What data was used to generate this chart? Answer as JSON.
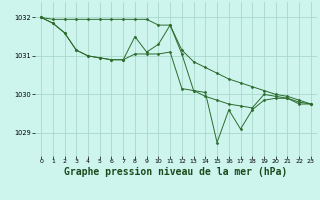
{
  "background_color": "#cdf5ee",
  "grid_color": "#a8d8cc",
  "line_color": "#2d6b2d",
  "marker_color": "#2d6b2d",
  "xlabel": "Graphe pression niveau de la mer (hPa)",
  "xlabel_fontsize": 7.0,
  "ylim": [
    1028.4,
    1032.4
  ],
  "yticks": [
    1029,
    1030,
    1031,
    1032
  ],
  "xlim": [
    -0.5,
    23.5
  ],
  "xticks": [
    0,
    1,
    2,
    3,
    4,
    5,
    6,
    7,
    8,
    9,
    10,
    11,
    12,
    13,
    14,
    15,
    16,
    17,
    18,
    19,
    20,
    21,
    22,
    23
  ],
  "series": [
    [
      1032.0,
      1031.95,
      1031.95,
      1031.95,
      1031.95,
      1031.95,
      1031.95,
      1031.95,
      1031.95,
      1031.95,
      1031.8,
      1031.8,
      1031.15,
      1030.85,
      1030.7,
      1030.55,
      1030.4,
      1030.3,
      1030.2,
      1030.1,
      1030.0,
      1029.95,
      1029.85,
      1029.75
    ],
    [
      1032.0,
      1031.85,
      1031.6,
      1031.15,
      1031.0,
      1030.95,
      1030.9,
      1030.9,
      1031.5,
      1031.1,
      1031.3,
      1031.8,
      1031.05,
      1030.1,
      1029.95,
      1029.85,
      1029.75,
      1029.7,
      1029.65,
      1030.0,
      1029.95,
      1029.9,
      1029.8,
      1029.75
    ],
    [
      1032.0,
      1031.85,
      1031.6,
      1031.15,
      1031.0,
      1030.95,
      1030.9,
      1030.9,
      1031.05,
      1031.05,
      1031.05,
      1031.1,
      1030.15,
      1030.1,
      1030.05,
      1028.75,
      1029.6,
      1029.1,
      1029.6,
      1029.85,
      1029.9,
      1029.9,
      1029.75,
      1029.75
    ]
  ]
}
